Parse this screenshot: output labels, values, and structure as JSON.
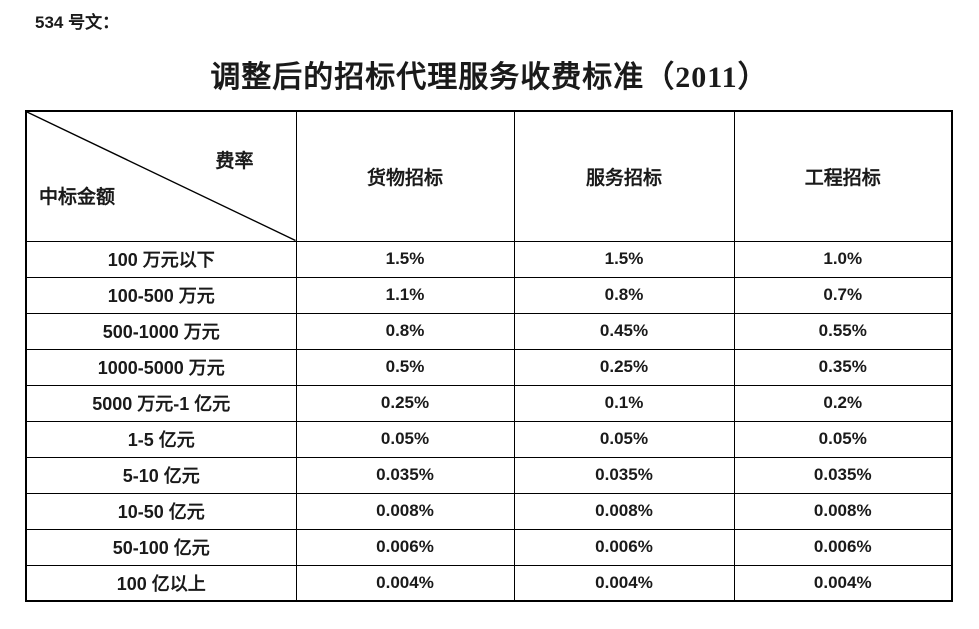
{
  "doc_label": "534 号文：",
  "title": "调整后的招标代理服务收费标准（2011）",
  "table": {
    "corner": {
      "top_right_label": "费率",
      "bottom_left_label": "中标金额"
    },
    "columns": [
      "货物招标",
      "服务招标",
      "工程招标"
    ],
    "rows": [
      {
        "range": "100 万元以下",
        "values": [
          "1.5%",
          "1.5%",
          "1.0%"
        ]
      },
      {
        "range": "100-500 万元",
        "values": [
          "1.1%",
          "0.8%",
          "0.7%"
        ]
      },
      {
        "range": "500-1000 万元",
        "values": [
          "0.8%",
          "0.45%",
          "0.55%"
        ]
      },
      {
        "range": "1000-5000 万元",
        "values": [
          "0.5%",
          "0.25%",
          "0.35%"
        ]
      },
      {
        "range": "5000 万元-1 亿元",
        "values": [
          "0.25%",
          "0.1%",
          "0.2%"
        ]
      },
      {
        "range": "1-5 亿元",
        "values": [
          "0.05%",
          "0.05%",
          "0.05%"
        ]
      },
      {
        "range": "5-10 亿元",
        "values": [
          "0.035%",
          "0.035%",
          "0.035%"
        ]
      },
      {
        "range": "10-50 亿元",
        "values": [
          "0.008%",
          "0.008%",
          "0.008%"
        ]
      },
      {
        "range": "50-100 亿元",
        "values": [
          "0.006%",
          "0.006%",
          "0.006%"
        ]
      },
      {
        "range": "100 亿以上",
        "values": [
          "0.004%",
          "0.004%",
          "0.004%"
        ]
      }
    ]
  },
  "colors": {
    "text": "#1a1a1a",
    "border": "#000000",
    "background": "#ffffff"
  }
}
